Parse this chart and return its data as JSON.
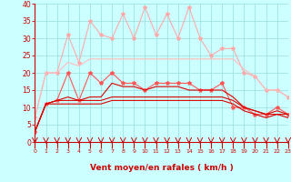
{
  "x": [
    0,
    1,
    2,
    3,
    4,
    5,
    6,
    7,
    8,
    9,
    10,
    11,
    12,
    13,
    14,
    15,
    16,
    17,
    18,
    19,
    20,
    21,
    22,
    23
  ],
  "series": [
    {
      "label": "rafales_max",
      "color": "#ffaaaa",
      "marker": "*",
      "linewidth": 0.8,
      "markersize": 3,
      "values": [
        7,
        20,
        20,
        31,
        23,
        35,
        31,
        30,
        37,
        30,
        39,
        31,
        37,
        30,
        39,
        30,
        25,
        27,
        27,
        20,
        19,
        15,
        15,
        13
      ]
    },
    {
      "label": "rafales_moy",
      "color": "#ffbbbb",
      "marker": null,
      "linewidth": 0.8,
      "markersize": 0,
      "values": [
        7,
        20,
        20,
        23,
        22,
        24,
        24,
        24,
        24,
        24,
        24,
        24,
        24,
        24,
        24,
        24,
        24,
        24,
        24,
        21,
        19,
        15,
        15,
        13
      ]
    },
    {
      "label": "vent_max",
      "color": "#ff5555",
      "marker": "*",
      "linewidth": 0.8,
      "markersize": 3,
      "values": [
        3,
        11,
        12,
        20,
        12,
        20,
        17,
        20,
        17,
        17,
        15,
        17,
        17,
        17,
        17,
        15,
        15,
        17,
        10,
        10,
        8,
        8,
        10,
        8
      ]
    },
    {
      "label": "vent_moy_high",
      "color": "#dd0000",
      "marker": null,
      "linewidth": 0.8,
      "markersize": 0,
      "values": [
        3,
        11,
        12,
        13,
        12,
        13,
        13,
        17,
        16,
        16,
        15,
        16,
        16,
        16,
        15,
        15,
        15,
        15,
        13,
        10,
        9,
        8,
        9,
        8
      ]
    },
    {
      "label": "vent_moy_mid",
      "color": "#dd0000",
      "marker": null,
      "linewidth": 0.8,
      "markersize": 0,
      "values": [
        3,
        11,
        12,
        12,
        12,
        12,
        12,
        13,
        13,
        13,
        13,
        13,
        13,
        13,
        13,
        13,
        13,
        13,
        12,
        10,
        9,
        8,
        8,
        8
      ]
    },
    {
      "label": "vent_min",
      "color": "#dd0000",
      "marker": null,
      "linewidth": 0.8,
      "markersize": 0,
      "values": [
        3,
        11,
        11,
        11,
        11,
        11,
        11,
        12,
        12,
        12,
        12,
        12,
        12,
        12,
        12,
        12,
        12,
        12,
        11,
        9,
        8,
        7,
        8,
        7
      ]
    }
  ],
  "xlabel": "Vent moyen/en rafales ( km/h )",
  "xlim": [
    0,
    23
  ],
  "ylim": [
    0,
    40
  ],
  "yticks": [
    0,
    5,
    10,
    15,
    20,
    25,
    30,
    35,
    40
  ],
  "xticks": [
    0,
    1,
    2,
    3,
    4,
    5,
    6,
    7,
    8,
    9,
    10,
    11,
    12,
    13,
    14,
    15,
    16,
    17,
    18,
    19,
    20,
    21,
    22,
    23
  ],
  "bg_color": "#ccffff",
  "grid_color": "#99dddd",
  "label_color": "#cc0000",
  "tick_color": "#cc0000"
}
